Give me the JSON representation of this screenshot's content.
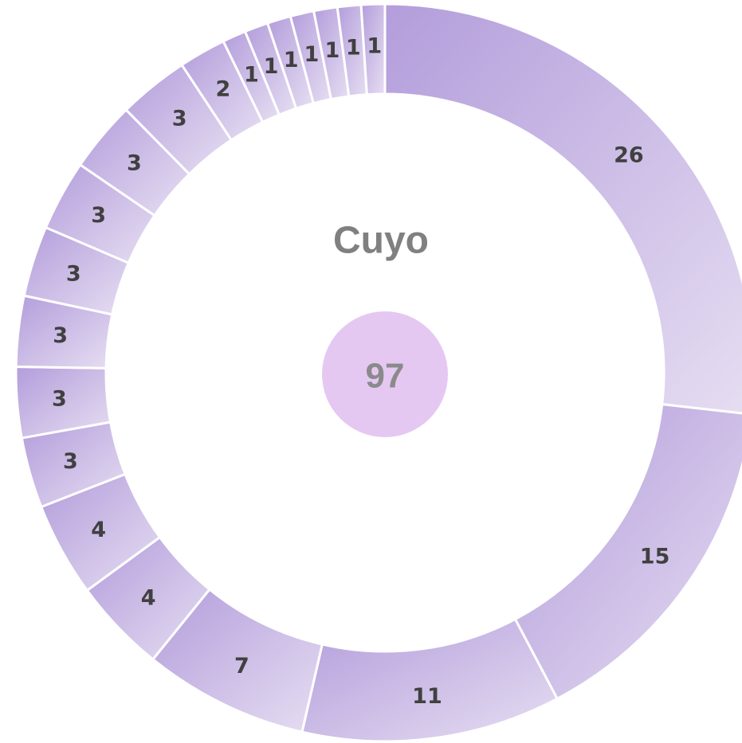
{
  "chart_data": {
    "type": "donut",
    "title": "Cuyo",
    "total": 97,
    "values": [
      26,
      15,
      11,
      7,
      4,
      4,
      3,
      3,
      3,
      3,
      3,
      3,
      3,
      2,
      1,
      1,
      1,
      1,
      1,
      1,
      1
    ],
    "color": "#b39ddb",
    "gradient_end": "#e6def2",
    "center_color": "#e4c8f2"
  }
}
